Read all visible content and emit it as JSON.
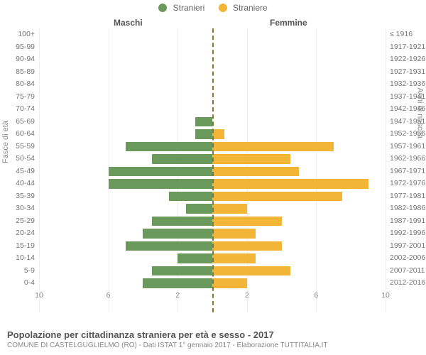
{
  "legend": {
    "male": {
      "label": "Stranieri",
      "color": "#6a9a5b"
    },
    "female": {
      "label": "Straniere",
      "color": "#f2b535"
    }
  },
  "section_titles": {
    "left": "Maschi",
    "right": "Femmine"
  },
  "y_axis_left_title": "Fasce di età",
  "y_axis_right_title": "Anni di nascita",
  "x_axis": {
    "max": 10,
    "ticks": [
      10,
      6,
      2,
      2,
      6,
      10
    ]
  },
  "colors": {
    "male_bar": "#6a9a5b",
    "female_bar": "#f2b535",
    "grid": "#eeeeee",
    "center_line": "#887733",
    "background": "#ffffff"
  },
  "rows": [
    {
      "age": "100+",
      "birth": "≤ 1916",
      "m": 0,
      "f": 0
    },
    {
      "age": "95-99",
      "birth": "1917-1921",
      "m": 0,
      "f": 0
    },
    {
      "age": "90-94",
      "birth": "1922-1926",
      "m": 0,
      "f": 0
    },
    {
      "age": "85-89",
      "birth": "1927-1931",
      "m": 0,
      "f": 0
    },
    {
      "age": "80-84",
      "birth": "1932-1936",
      "m": 0,
      "f": 0
    },
    {
      "age": "75-79",
      "birth": "1937-1941",
      "m": 0,
      "f": 0
    },
    {
      "age": "70-74",
      "birth": "1942-1946",
      "m": 0,
      "f": 0
    },
    {
      "age": "65-69",
      "birth": "1947-1951",
      "m": 1.0,
      "f": 0
    },
    {
      "age": "60-64",
      "birth": "1952-1956",
      "m": 1.0,
      "f": 0.7
    },
    {
      "age": "55-59",
      "birth": "1957-1961",
      "m": 5.0,
      "f": 7.0
    },
    {
      "age": "50-54",
      "birth": "1962-1966",
      "m": 3.5,
      "f": 4.5
    },
    {
      "age": "45-49",
      "birth": "1967-1971",
      "m": 6.0,
      "f": 5.0
    },
    {
      "age": "40-44",
      "birth": "1972-1976",
      "m": 6.0,
      "f": 9.0
    },
    {
      "age": "35-39",
      "birth": "1977-1981",
      "m": 2.5,
      "f": 7.5
    },
    {
      "age": "30-34",
      "birth": "1982-1986",
      "m": 1.5,
      "f": 2.0
    },
    {
      "age": "25-29",
      "birth": "1987-1991",
      "m": 3.5,
      "f": 4.0
    },
    {
      "age": "20-24",
      "birth": "1992-1996",
      "m": 4.0,
      "f": 2.5
    },
    {
      "age": "15-19",
      "birth": "1997-2001",
      "m": 5.0,
      "f": 4.0
    },
    {
      "age": "10-14",
      "birth": "2002-2006",
      "m": 2.0,
      "f": 2.5
    },
    {
      "age": "5-9",
      "birth": "2007-2011",
      "m": 3.5,
      "f": 4.5
    },
    {
      "age": "0-4",
      "birth": "2012-2016",
      "m": 4.0,
      "f": 2.0
    }
  ],
  "footer": {
    "title": "Popolazione per cittadinanza straniera per età e sesso - 2017",
    "subtitle": "COMUNE DI CASTELGUGLIELMO (RO) - Dati ISTAT 1° gennaio 2017 - Elaborazione TUTTITALIA.IT"
  }
}
